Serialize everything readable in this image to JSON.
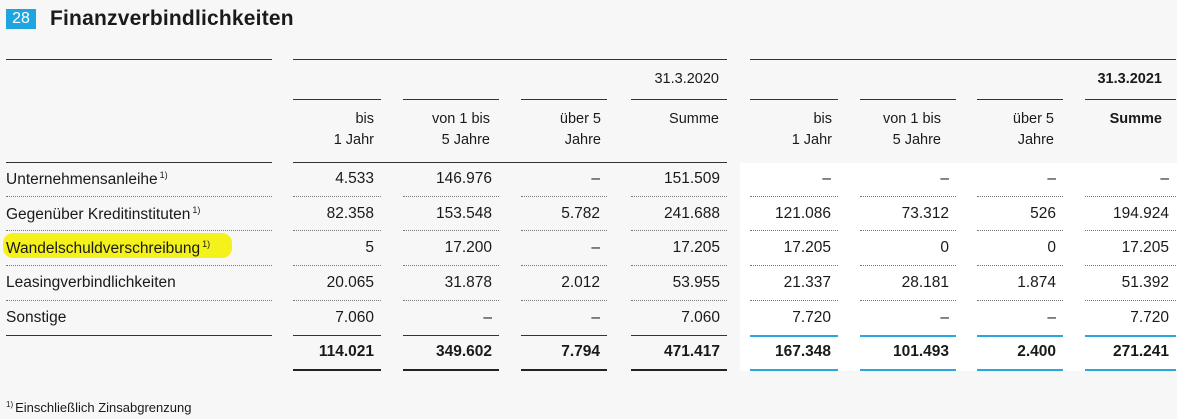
{
  "title": {
    "number": "28",
    "text": "Finanzverbindlichkeiten"
  },
  "periods": [
    {
      "date": "31.3.2020",
      "bold": false
    },
    {
      "date": "31.3.2021",
      "bold": true
    }
  ],
  "columns": [
    {
      "line1": "bis",
      "line2": "1 Jahr"
    },
    {
      "line1": "von 1 bis",
      "line2": "5 Jahre"
    },
    {
      "line1": "über 5",
      "line2": "Jahre"
    },
    {
      "line1": "Summe",
      "line2": ""
    }
  ],
  "rows": [
    {
      "label": "Unternehmensanleihe",
      "footnote": "1)",
      "values": [
        "4.533",
        "146.976",
        "–",
        "151.509",
        "–",
        "–",
        "–",
        "–"
      ]
    },
    {
      "label": "Gegenüber Kreditinstituten",
      "footnote": "1)",
      "values": [
        "82.358",
        "153.548",
        "5.782",
        "241.688",
        "121.086",
        "73.312",
        "526",
        "194.924"
      ]
    },
    {
      "label": "Wandelschuldverschreibung",
      "footnote": "1)",
      "highlighted": true,
      "values": [
        "5",
        "17.200",
        "–",
        "17.205",
        "17.205",
        "0",
        "0",
        "17.205"
      ]
    },
    {
      "label": "Leasingverbindlichkeiten",
      "footnote": "",
      "values": [
        "20.065",
        "31.878",
        "2.012",
        "53.955",
        "21.337",
        "28.181",
        "1.874",
        "51.392"
      ]
    },
    {
      "label": "Sonstige",
      "footnote": "",
      "values": [
        "7.060",
        "–",
        "–",
        "7.060",
        "7.720",
        "–",
        "–",
        "7.720"
      ]
    }
  ],
  "total": {
    "values": [
      "114.021",
      "349.602",
      "7.794",
      "471.417",
      "167.348",
      "101.493",
      "2.400",
      "271.241"
    ]
  },
  "footnote": {
    "marker": "1)",
    "text": "Einschließlich Zinsabgrenzung"
  },
  "colors": {
    "accent": "#1ea5e0",
    "highlight": "#f4f21a",
    "rule_blue": "#29a8e0"
  }
}
